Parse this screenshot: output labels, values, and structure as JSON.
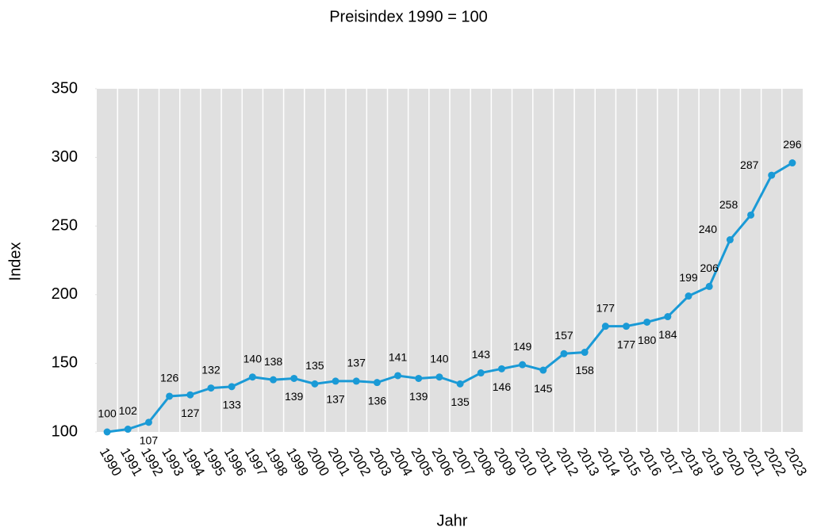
{
  "chart_data": {
    "type": "line",
    "title": "Preisindex 1990 = 100",
    "x_label": "Jahr",
    "y_label": "Index",
    "categories": [
      "1990",
      "1991",
      "1992",
      "1993",
      "1994",
      "1995",
      "1996",
      "1997",
      "1998",
      "1999",
      "2000",
      "2001",
      "2002",
      "2003",
      "2004",
      "2005",
      "2006",
      "2007",
      "2008",
      "2009",
      "2010",
      "2011",
      "2012",
      "2013",
      "2014",
      "2015",
      "2016",
      "2017",
      "2018",
      "2019",
      "2020",
      "2021",
      "2022",
      "2023"
    ],
    "series": [
      {
        "name": "Index",
        "color": "#1a9ad6",
        "values": [
          100,
          102,
          107,
          126,
          127,
          132,
          133,
          140,
          138,
          139,
          135,
          137,
          137,
          136,
          141,
          139,
          140,
          135,
          143,
          146,
          149,
          145,
          157,
          158,
          177,
          177,
          180,
          184,
          199,
          206,
          240,
          258,
          287,
          296
        ]
      }
    ],
    "ylim": [
      100,
      350
    ],
    "yticks": [
      100,
      150,
      200,
      250,
      300,
      350
    ],
    "grid": true,
    "plot_background": "#e0e0e0"
  }
}
